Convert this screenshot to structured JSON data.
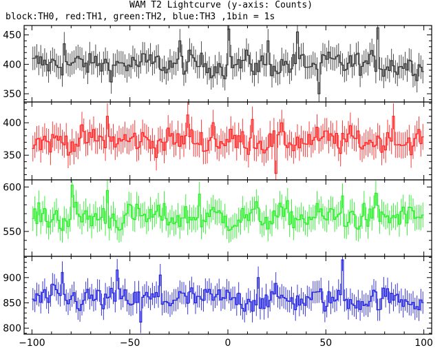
{
  "chart_data": {
    "type": "line",
    "title": "WAM T2 Lightcurve (y-axis: Counts)",
    "subtitle": "block:TH0, red:TH1, green:TH2, blue:TH3 ,1bin = 1s",
    "xlim": [
      -104,
      104
    ],
    "x_ticks": [
      -100,
      -50,
      0,
      50,
      100
    ],
    "step_style": "histogram steps with error bars",
    "panels": [
      {
        "series": "TH0",
        "color": "#333333",
        "ylim": [
          336,
          466
        ],
        "y_ticks": [
          350,
          400,
          450
        ],
        "base": 400,
        "amp": 18,
        "err": 20,
        "bursts": [
          [
            0,
            460
          ],
          [
            -25,
            440
          ],
          [
            35,
            455
          ],
          [
            76,
            462
          ],
          [
            20,
            440
          ],
          [
            -84,
            435
          ],
          [
            46,
            350
          ]
        ]
      },
      {
        "series": "TH1",
        "color": "#ff2020",
        "ylim": [
          312,
          432
        ],
        "y_ticks": [
          350,
          400
        ],
        "base": 372,
        "amp": 17,
        "err": 20,
        "bursts": [
          [
            -62,
            410
          ],
          [
            -21,
            412
          ],
          [
            12,
            405
          ],
          [
            24,
            322
          ],
          [
            84,
            410
          ],
          [
            -8,
            400
          ]
        ]
      },
      {
        "series": "TH2",
        "color": "#22ee22",
        "ylim": [
          522,
          608
        ],
        "y_ticks": [
          550,
          600
        ],
        "base": 566,
        "amp": 13,
        "err": 14,
        "bursts": [
          [
            -80,
            602
          ],
          [
            -62,
            596
          ],
          [
            -15,
            592
          ],
          [
            58,
            590
          ],
          [
            75,
            593
          ]
        ]
      },
      {
        "series": "TH3",
        "color": "#1f1fdd",
        "ylim": [
          788,
          942
        ],
        "y_ticks": [
          800,
          850,
          900
        ],
        "base": 857,
        "amp": 20,
        "err": 22,
        "bursts": [
          [
            -85,
            910
          ],
          [
            -57,
            915
          ],
          [
            -35,
            905
          ],
          [
            58,
            935
          ],
          [
            15,
            900
          ],
          [
            -45,
            812
          ]
        ]
      }
    ]
  }
}
